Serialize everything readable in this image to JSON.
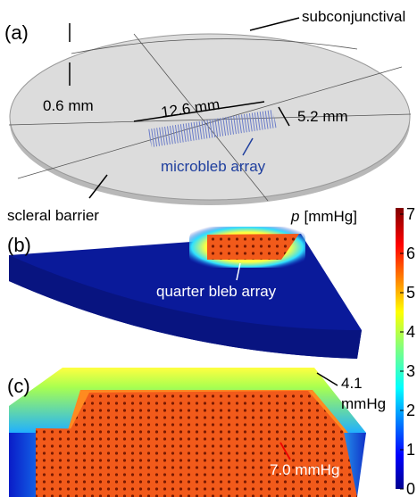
{
  "panel_a": {
    "label": "(a)",
    "subconjunctival": "subconjunctival",
    "thickness": "0.6 mm",
    "length": "12.6 mm",
    "width": "5.2 mm",
    "array": "microbleb array",
    "barrier": "scleral barrier"
  },
  "panel_b": {
    "label": "(b)",
    "array": "quarter bleb array"
  },
  "panel_c": {
    "label": "(c)",
    "edge_value": "4.1",
    "edge_unit": "mmHg",
    "center": "7.0 mmHg"
  },
  "colorbar": {
    "symbol": "p",
    "unit": "[mmHg]",
    "lim": [
      0,
      7
    ],
    "ticks": [
      0,
      1,
      2,
      3,
      4,
      5,
      6,
      7
    ]
  }
}
